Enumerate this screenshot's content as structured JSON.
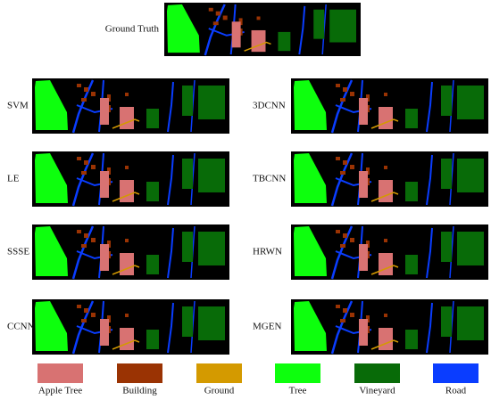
{
  "ground_truth": {
    "label": "Ground Truth"
  },
  "panels": [
    {
      "label": "SVM"
    },
    {
      "label": "3DCNN"
    },
    {
      "label": "LE"
    },
    {
      "label": "TBCNN"
    },
    {
      "label": "SSSE"
    },
    {
      "label": "HRWN"
    },
    {
      "label": "CCNN"
    },
    {
      "label": "MGEN"
    }
  ],
  "legend": [
    {
      "label": "Apple Tree",
      "color": "#d87272"
    },
    {
      "label": "Building",
      "color": "#9a3303"
    },
    {
      "label": "Ground",
      "color": "#d49a00"
    },
    {
      "label": "Tree",
      "color": "#0dff0d"
    },
    {
      "label": "Vineyard",
      "color": "#086b08"
    },
    {
      "label": "Road",
      "color": "#0a3dff"
    }
  ]
}
